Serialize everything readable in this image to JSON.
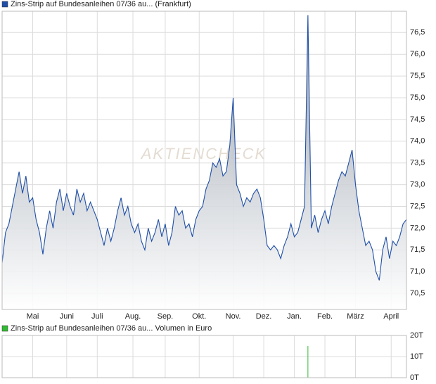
{
  "chart_data": [
    {
      "type": "line",
      "watermark": "AKTIENCHECK",
      "series": [
        {
          "name": "Zins-Strip auf Bundesanleihen 07/36 au... (Frankfurt)",
          "color": "#1f4fa8",
          "values": [
            71.2,
            71.9,
            72.1,
            72.5,
            72.9,
            73.3,
            72.8,
            73.2,
            72.6,
            72.7,
            72.2,
            71.9,
            71.4,
            72.0,
            72.4,
            72.0,
            72.6,
            72.9,
            72.4,
            72.8,
            72.5,
            72.3,
            72.9,
            72.6,
            72.8,
            72.4,
            72.6,
            72.4,
            72.2,
            71.9,
            71.6,
            72.0,
            71.7,
            72.0,
            72.4,
            72.7,
            72.3,
            72.5,
            72.1,
            71.9,
            72.1,
            71.7,
            71.5,
            72.0,
            71.7,
            71.9,
            72.2,
            71.8,
            72.1,
            71.6,
            71.9,
            72.5,
            72.3,
            72.4,
            72.0,
            72.1,
            71.8,
            72.2,
            72.4,
            72.5,
            72.9,
            73.1,
            73.5,
            73.4,
            73.6,
            73.2,
            73.3,
            73.9,
            75.0,
            73.0,
            72.8,
            72.5,
            72.7,
            72.6,
            72.8,
            72.9,
            72.7,
            72.2,
            71.6,
            71.5,
            71.6,
            71.5,
            71.3,
            71.6,
            71.8,
            72.1,
            71.8,
            71.9,
            72.2,
            72.5,
            76.9,
            72.0,
            72.3,
            71.9,
            72.2,
            72.4,
            72.1,
            72.5,
            72.8,
            73.1,
            73.3,
            73.2,
            73.5,
            73.8,
            73.0,
            72.4,
            72.0,
            71.6,
            71.7,
            71.5,
            71.0,
            70.8,
            71.5,
            71.8,
            71.3,
            71.7,
            71.6,
            71.8,
            72.1,
            72.2
          ]
        }
      ],
      "xlim": [
        0,
        119
      ],
      "xticks": [
        {
          "value": 9,
          "label": "Mai"
        },
        {
          "value": 19,
          "label": "Juni"
        },
        {
          "value": 28,
          "label": "Juli"
        },
        {
          "value": 38.5,
          "label": "Aug."
        },
        {
          "value": 48,
          "label": "Sep."
        },
        {
          "value": 58,
          "label": "Okt."
        },
        {
          "value": 68,
          "label": "Nov."
        },
        {
          "value": 77,
          "label": "Dez."
        },
        {
          "value": 86,
          "label": "Jan."
        },
        {
          "value": 95,
          "label": "Feb."
        },
        {
          "value": 104,
          "label": "März"
        },
        {
          "value": 114.5,
          "label": "April"
        }
      ],
      "ylim": [
        70.13,
        76.99
      ],
      "yticks": [
        {
          "value": 70.5,
          "label": "70,5"
        },
        {
          "value": 71,
          "label": "71,0"
        },
        {
          "value": 71.5,
          "label": "71,5"
        },
        {
          "value": 72,
          "label": "72,0"
        },
        {
          "value": 72.5,
          "label": "72,5"
        },
        {
          "value": 73,
          "label": "73,0"
        },
        {
          "value": 73.5,
          "label": "73,5"
        },
        {
          "value": 74,
          "label": "74,0"
        },
        {
          "value": 74.5,
          "label": "74,5"
        },
        {
          "value": 75,
          "label": "75,0"
        },
        {
          "value": 75.5,
          "label": "75,5"
        },
        {
          "value": 76,
          "label": "76,0"
        },
        {
          "value": 76.5,
          "label": "76,5"
        }
      ],
      "grid": true
    },
    {
      "type": "bar",
      "series": [
        {
          "name": "Zins-Strip auf Bundesanleihen 07/36 au... Volumen in Euro",
          "color": "#33bb33",
          "values": [
            0,
            0,
            0,
            0,
            0,
            0,
            0,
            0,
            0,
            0,
            0,
            0,
            0,
            0,
            0,
            0,
            0,
            0,
            0,
            0,
            0,
            0,
            0,
            0,
            0,
            0,
            0,
            0,
            0,
            0,
            0,
            0,
            0,
            0,
            0,
            0,
            0,
            0,
            0,
            0,
            0,
            0,
            0,
            0,
            0,
            0,
            0,
            0,
            0,
            0,
            0,
            0,
            0,
            0,
            0,
            0,
            0,
            0,
            0,
            0,
            0,
            0,
            0,
            0,
            0,
            0,
            0,
            0,
            0,
            0,
            0,
            0,
            0,
            0,
            0,
            0,
            0,
            0,
            0,
            0,
            0,
            0,
            0,
            0,
            0,
            0,
            0,
            0,
            0,
            0,
            15,
            0,
            0,
            0,
            0,
            0,
            0,
            0,
            0,
            0,
            0,
            0,
            0,
            0,
            0,
            0,
            0,
            0,
            0,
            0,
            0,
            0,
            0,
            0,
            0,
            0,
            0,
            0,
            0,
            0
          ]
        }
      ],
      "xlim": [
        0,
        119
      ],
      "ylim": [
        0,
        20
      ],
      "yticks": [
        {
          "value": 0,
          "label": "0T"
        },
        {
          "value": 10,
          "label": "10T"
        },
        {
          "value": 20,
          "label": "20T"
        }
      ],
      "grid": true
    }
  ]
}
